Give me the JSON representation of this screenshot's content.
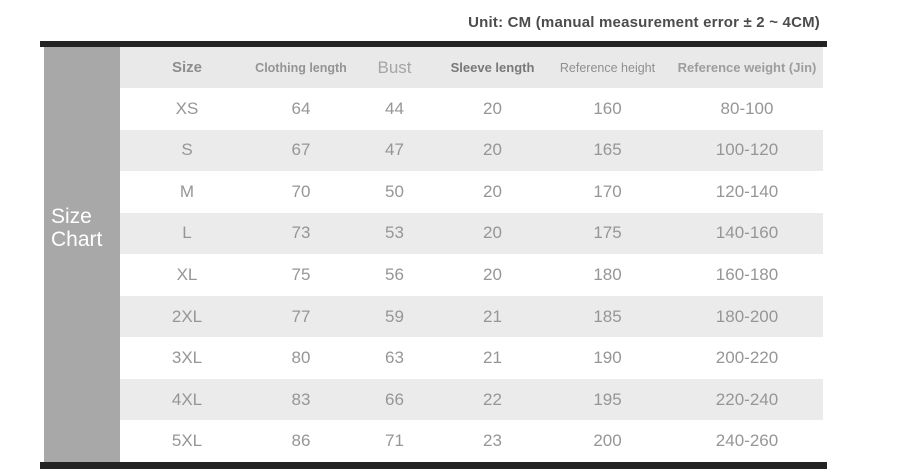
{
  "unit_note": "Unit: CM (manual measurement error ± 2 ~ 4CM)",
  "side_label": [
    "Size",
    "Chart"
  ],
  "chart_data": {
    "type": "table",
    "title": "Size Chart",
    "unit": "CM",
    "columns": [
      "Size",
      "Clothing length",
      "Bust",
      "Sleeve length",
      "Reference height",
      "Reference weight (Jin)"
    ],
    "rows": [
      [
        "XS",
        "64",
        "44",
        "20",
        "160",
        "80-100"
      ],
      [
        "S",
        "67",
        "47",
        "20",
        "165",
        "100-120"
      ],
      [
        "M",
        "70",
        "50",
        "20",
        "170",
        "120-140"
      ],
      [
        "L",
        "73",
        "53",
        "20",
        "175",
        "140-160"
      ],
      [
        "XL",
        "75",
        "56",
        "20",
        "180",
        "160-180"
      ],
      [
        "2XL",
        "77",
        "59",
        "21",
        "185",
        "180-200"
      ],
      [
        "3XL",
        "80",
        "63",
        "21",
        "190",
        "200-220"
      ],
      [
        "4XL",
        "83",
        "66",
        "22",
        "195",
        "220-240"
      ],
      [
        "5XL",
        "86",
        "71",
        "23",
        "200",
        "240-260"
      ]
    ],
    "layout": {
      "striping": "rows alternate white and light gray starting with white",
      "header_background": "light gray",
      "legend_position": "none",
      "grid": "off"
    }
  },
  "colors": {
    "bar-black": "#232323",
    "sidebar-gray": "#a8a8a8",
    "header-bg": "#e9e9e9",
    "row-alt-bg": "#ebebeb",
    "title-text": "#4c4c4c",
    "data-text": "#969696",
    "side-label-text": "#ffffff"
  }
}
